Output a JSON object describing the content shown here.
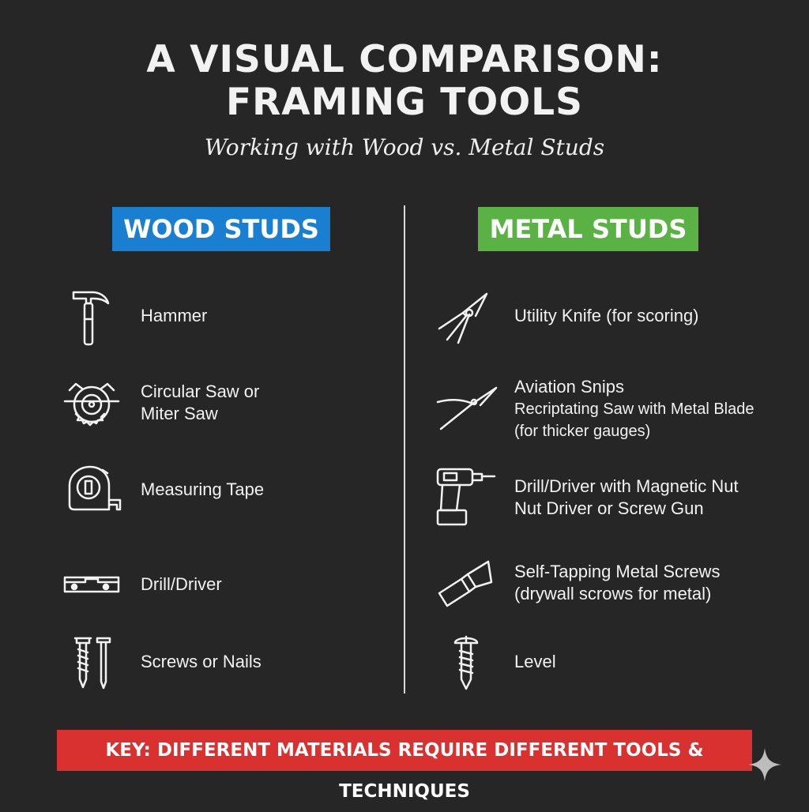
{
  "header": {
    "title_line1": "A VISUAL COMPARISON:",
    "title_line2": "FRAMING TOOLS",
    "subtitle": "Working with Wood vs. Metal Studs"
  },
  "wood": {
    "heading": "WOOD STUDS",
    "color": "#1b7fd1",
    "items": [
      {
        "icon": "hammer-icon",
        "line1": "Hammer",
        "line2": ""
      },
      {
        "icon": "circular-saw-icon",
        "line1": "Circular Saw or",
        "line2": "Miter Saw"
      },
      {
        "icon": "measuring-tape-icon",
        "line1": "Measuring Tape",
        "line2": ""
      },
      {
        "icon": "level-icon",
        "line1": "Drill/Driver",
        "line2": ""
      },
      {
        "icon": "screw-nail-icon",
        "line1": "Screws or Nails",
        "line2": ""
      }
    ]
  },
  "metal": {
    "heading": "METAL STUDS",
    "color": "#5bb244",
    "items": [
      {
        "icon": "snips-icon",
        "line1": "Utility Knife (for scoring)",
        "line2": "",
        "line3": ""
      },
      {
        "icon": "snips-icon",
        "line1": "Aviation Snips",
        "line2": "Recriptating Saw with Metal Blade",
        "line3": "(for thicker gauges)"
      },
      {
        "icon": "drill-icon",
        "line1": "Drill/Driver with Magnetic Nut",
        "line2": "Nut Driver or Screw Gun",
        "line3": ""
      },
      {
        "icon": "utility-knife-icon",
        "line1": "Self-Tapping Metal Screws",
        "line2": "(drywall scrows for metal)",
        "line3": ""
      },
      {
        "icon": "screw-icon",
        "line1": "Level",
        "line2": "",
        "line3": ""
      }
    ]
  },
  "footer": {
    "key": "KEY: DIFFERENT MATERIALS REQUIRE DIFFERENT TOOLS & TECHNIQUES",
    "color": "#d93030"
  }
}
